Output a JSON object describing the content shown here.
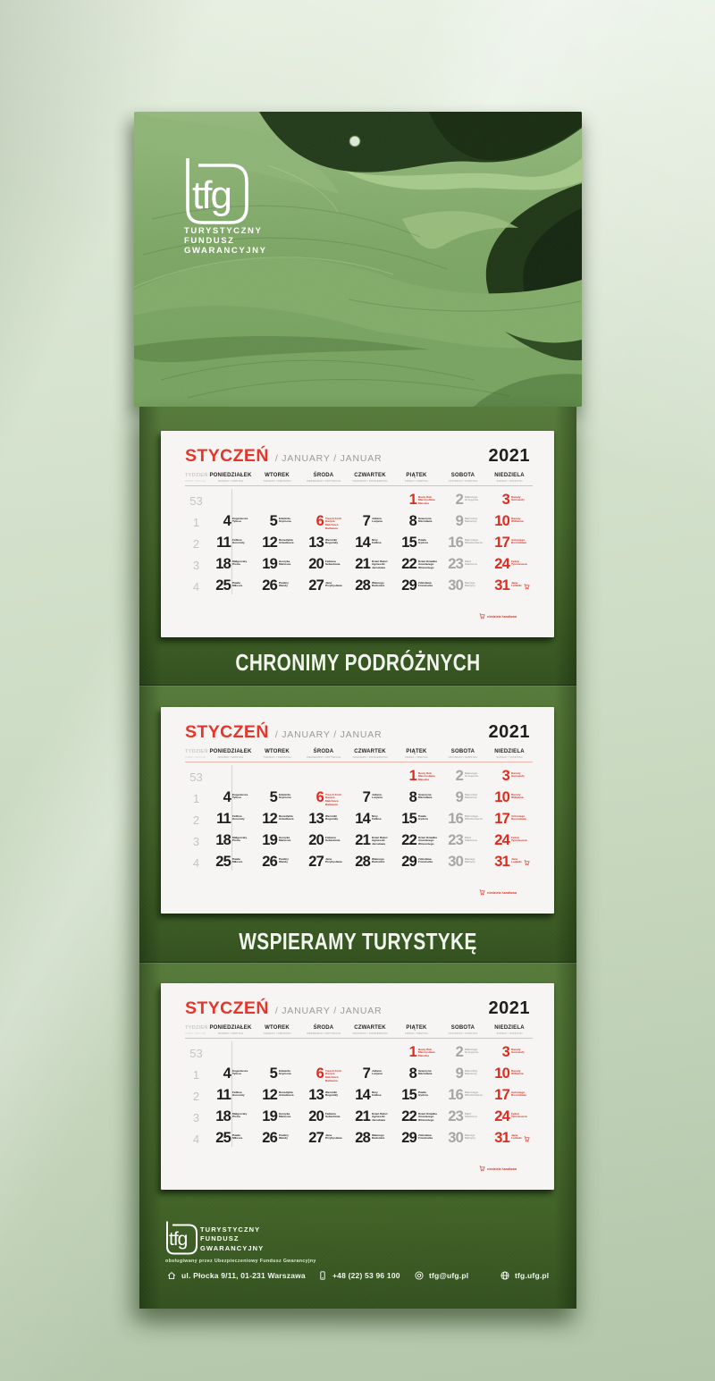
{
  "header": {
    "logo": {
      "mark": "tfg",
      "org_lines": [
        "TURYSTYCZNY",
        "FUNDUSZ",
        "GWARANCYJNY"
      ]
    }
  },
  "bands": [
    {
      "text": "CHRONIMY PODRÓŻNYCH"
    },
    {
      "text": "WSPIERAMY TURYSTYKĘ"
    }
  ],
  "calendar": {
    "title": {
      "month_pl": "STYCZEŃ",
      "month_intl": "/ JANUARY / JANUAR",
      "year": "2021"
    },
    "week_column": {
      "label": "TYDZIEŃ",
      "sub": "WEEK / WOCHE"
    },
    "weekdays": [
      {
        "label": "PONIEDZIAŁEK",
        "sub": "MONDAY / MONTAG"
      },
      {
        "label": "WTOREK",
        "sub": "TUESDAY / DIENSTAG"
      },
      {
        "label": "ŚRODA",
        "sub": "WEDNESDAY / MITTWOCH"
      },
      {
        "label": "CZWARTEK",
        "sub": "THURSDAY / DONNERSTAG"
      },
      {
        "label": "PIĄTEK",
        "sub": "FRIDAY / FREITAG"
      },
      {
        "label": "SOBOTA",
        "sub": "SATURDAY / SAMSTAG"
      },
      {
        "label": "NIEDZIELA",
        "sub": "SUNDAY / SONNTAG"
      }
    ],
    "legend": {
      "icon": "shopping-cart-icon",
      "text": "niedziela handlowa"
    },
    "weeks": [
      {
        "week": "53",
        "cells": [
          null,
          null,
          null,
          null,
          {
            "day": "1",
            "names": [
              "Nowy Rok",
              "Mieczysława",
              "Mieszka"
            ],
            "type": "holiday"
          },
          {
            "day": "2",
            "names": [
              "Makarego",
              "Grzegorza"
            ],
            "type": "saturday"
          },
          {
            "day": "3",
            "names": [
              "Danuty",
              "Genowefy"
            ],
            "type": "sunday"
          }
        ]
      },
      {
        "week": "1",
        "cells": [
          {
            "day": "4",
            "names": [
              "Eugeniusza",
              "Tytusa"
            ],
            "type": "weekday"
          },
          {
            "day": "5",
            "names": [
              "Edwarda",
              "Szymona"
            ],
            "type": "weekday"
          },
          {
            "day": "6",
            "names": [
              "Trzech Króli",
              "Kacpra",
              "Melchiora",
              "Baltazara"
            ],
            "type": "holiday"
          },
          {
            "day": "7",
            "names": [
              "Juliana",
              "Lucjana"
            ],
            "type": "weekday"
          },
          {
            "day": "8",
            "names": [
              "Seweryna",
              "Mścisława"
            ],
            "type": "weekday"
          },
          {
            "day": "9",
            "names": [
              "Marceliny",
              "Marianny"
            ],
            "type": "saturday"
          },
          {
            "day": "10",
            "names": [
              "Danuty",
              "Wilhelma"
            ],
            "type": "sunday"
          }
        ]
      },
      {
        "week": "2",
        "cells": [
          {
            "day": "11",
            "names": [
              "Feliksa",
              "Honoraty"
            ],
            "type": "weekday"
          },
          {
            "day": "12",
            "names": [
              "Benedykta",
              "Arkadiusza"
            ],
            "type": "weekday"
          },
          {
            "day": "13",
            "names": [
              "Weroniki",
              "Bogumiły"
            ],
            "type": "weekday"
          },
          {
            "day": "14",
            "names": [
              "Niny",
              "Feliksa"
            ],
            "type": "weekday"
          },
          {
            "day": "15",
            "names": [
              "Pawła",
              "Izydora"
            ],
            "type": "weekday"
          },
          {
            "day": "16",
            "names": [
              "Marcelego",
              "Włodzimierza"
            ],
            "type": "saturday"
          },
          {
            "day": "17",
            "names": [
              "Antoniego",
              "Rościsława"
            ],
            "type": "sunday"
          }
        ]
      },
      {
        "week": "3",
        "cells": [
          {
            "day": "18",
            "names": [
              "Małgorzaty",
              "Piotra"
            ],
            "type": "weekday"
          },
          {
            "day": "19",
            "names": [
              "Henryka",
              "Mariusza"
            ],
            "type": "weekday"
          },
          {
            "day": "20",
            "names": [
              "Fabiana",
              "Sebastiana"
            ],
            "type": "weekday"
          },
          {
            "day": "21",
            "names": [
              "Dzień Babci",
              "Agnieszki",
              "Jarosława"
            ],
            "type": "weekday"
          },
          {
            "day": "22",
            "names": [
              "Dzień Dziadka",
              "Anastazego",
              "Wincentego"
            ],
            "type": "weekday"
          },
          {
            "day": "23",
            "names": [
              "Marii",
              "Ildefonsa"
            ],
            "type": "saturday"
          },
          {
            "day": "24",
            "names": [
              "Felicji",
              "Tymoteusza"
            ],
            "type": "sunday"
          }
        ]
      },
      {
        "week": "4",
        "cells": [
          {
            "day": "25",
            "names": [
              "Pawła",
              "Miłosza"
            ],
            "type": "weekday"
          },
          {
            "day": "26",
            "names": [
              "Pauliny",
              "Wandy"
            ],
            "type": "weekday"
          },
          {
            "day": "27",
            "names": [
              "Jana",
              "Przybysława"
            ],
            "type": "weekday"
          },
          {
            "day": "28",
            "names": [
              "Walerego",
              "Radomira"
            ],
            "type": "weekday"
          },
          {
            "day": "29",
            "names": [
              "Zdzisława",
              "Franciszka"
            ],
            "type": "weekday"
          },
          {
            "day": "30",
            "names": [
              "Macieja",
              "Martyny"
            ],
            "type": "saturday"
          },
          {
            "day": "31",
            "names": [
              "Jana",
              "Ludwiki"
            ],
            "type": "sunday",
            "cart": true
          }
        ]
      }
    ]
  },
  "footer": {
    "logo": {
      "mark": "tfg",
      "org_lines": [
        "TURYSTYCZNY",
        "FUNDUSZ",
        "GWARANCYJNY"
      ]
    },
    "caption": "obsługiwany przez Ubezpieczeniowy Fundusz Gwarancyjny",
    "contacts": [
      {
        "icon": "home-icon",
        "text": "ul. Płocka 9/11, 01-231 Warszawa"
      },
      {
        "icon": "phone-icon",
        "text": "+48 (22) 53 96 100"
      },
      {
        "icon": "at-icon",
        "text": "tfg@ufg.pl"
      },
      {
        "icon": "globe-icon",
        "text": "tfg.ufg.pl"
      }
    ]
  },
  "colors": {
    "accent_red": "#e0281c",
    "board_green": "#4a6c30",
    "page_white": "#f6f5f3",
    "wall_sage": "#d2e0ca"
  }
}
